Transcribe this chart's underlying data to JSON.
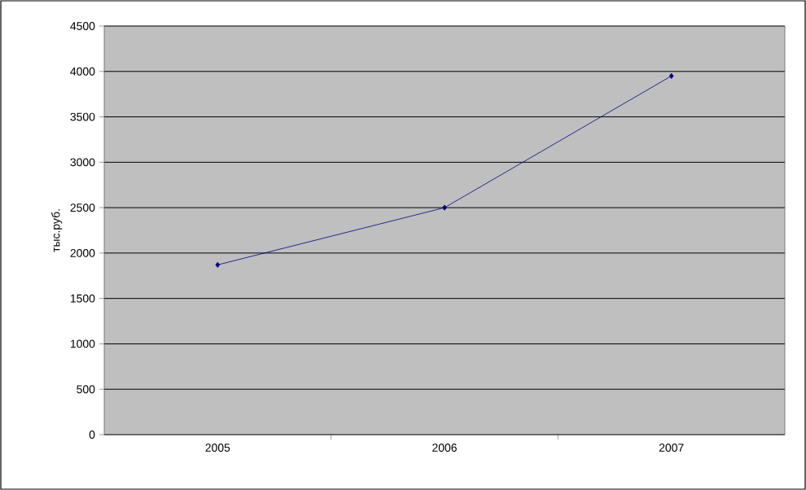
{
  "chart_data": {
    "type": "line",
    "ylabel": "тыс.руб.",
    "categories": [
      "2005",
      "2006",
      "2007"
    ],
    "series": [
      {
        "color": "#000080",
        "values": [
          1870,
          2500,
          3950
        ]
      }
    ],
    "ylim": [
      0,
      4500
    ],
    "yticks": [
      0,
      500,
      1000,
      1500,
      2000,
      2500,
      3000,
      3500,
      4000,
      4500
    ],
    "grid": "y",
    "marker": "diamond",
    "line_style": "solid"
  }
}
